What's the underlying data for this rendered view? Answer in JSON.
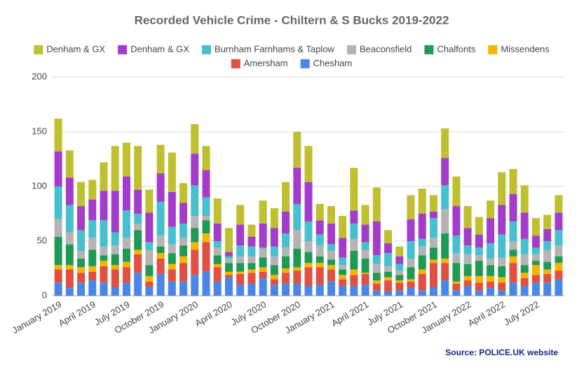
{
  "chart_data": {
    "type": "stacked_bar",
    "title": "Recorded Vehicle Crime - Chiltern & S Bucks 2019-2022",
    "source": "Source: POLICE.UK website",
    "categories": [
      "January 2019",
      null,
      null,
      "April 2019",
      null,
      null,
      "July 2019",
      null,
      null,
      "October 2019",
      null,
      null,
      "January 2020",
      null,
      null,
      "April 2020",
      null,
      null,
      "July 2020",
      null,
      null,
      "October 2020",
      null,
      null,
      "January 2021",
      null,
      null,
      "April 2021",
      null,
      null,
      "July 2021",
      null,
      null,
      "October 2021",
      null,
      null,
      "January 2022",
      null,
      null,
      "April 2022",
      null,
      null,
      "July 2022",
      null,
      null
    ],
    "ylim": [
      0,
      200
    ],
    "yticks": [
      0,
      50,
      100,
      150,
      200
    ],
    "grid": true,
    "series": [
      {
        "name": "Denham & GX",
        "color": "#bfbf30",
        "values": [
          30,
          25,
          22,
          18,
          26,
          41,
          31,
          40,
          21,
          26,
          36,
          18,
          27,
          22,
          23,
          22,
          18,
          11,
          21,
          18,
          27,
          33,
          33,
          15,
          16,
          20,
          39,
          18,
          31,
          12,
          9,
          22,
          23,
          15,
          27,
          27,
          20,
          16,
          16,
          30,
          23,
          25,
          16,
          13,
          16
        ]
      },
      {
        "name": "Denham & GX",
        "color": "#a43ccb",
        "values": [
          32,
          25,
          22,
          19,
          27,
          38,
          31,
          22,
          27,
          26,
          32,
          19,
          29,
          25,
          16,
          4,
          19,
          9,
          22,
          17,
          20,
          33,
          36,
          13,
          19,
          18,
          12,
          16,
          31,
          9,
          7,
          20,
          23,
          6,
          25,
          27,
          16,
          12,
          23,
          27,
          25,
          24,
          11,
          11,
          16
        ]
      },
      {
        "name": "Burnham Farnhams & Taplow",
        "color": "#46bfcf",
        "values": [
          30,
          25,
          19,
          16,
          24,
          12,
          25,
          9,
          7,
          31,
          16,
          13,
          28,
          17,
          6,
          2,
          10,
          9,
          1,
          9,
          13,
          24,
          18,
          10,
          6,
          7,
          14,
          7,
          8,
          12,
          6,
          16,
          7,
          18,
          22,
          16,
          8,
          7,
          14,
          21,
          18,
          14,
          6,
          8,
          14
        ]
      },
      {
        "name": "Beaconsfield",
        "color": "#b4b4b4",
        "values": [
          16,
          11,
          7,
          11,
          8,
          8,
          10,
          6,
          14,
          10,
          8,
          7,
          11,
          4,
          7,
          4,
          6,
          6,
          8,
          8,
          8,
          17,
          10,
          10,
          8,
          4,
          11,
          8,
          8,
          5,
          4,
          8,
          8,
          9,
          22,
          9,
          9,
          5,
          6,
          8,
          8,
          10,
          6,
          11,
          10
        ]
      },
      {
        "name": "Chalfonts",
        "color": "#1e9a54",
        "values": [
          26,
          19,
          8,
          15,
          5,
          10,
          12,
          18,
          10,
          6,
          10,
          10,
          13,
          12,
          8,
          8,
          8,
          6,
          9,
          9,
          11,
          17,
          10,
          6,
          5,
          5,
          17,
          13,
          7,
          5,
          5,
          11,
          13,
          11,
          23,
          17,
          11,
          14,
          10,
          10,
          6,
          7,
          4,
          7,
          6
        ]
      },
      {
        "name": "Missendens",
        "color": "#f5b400",
        "values": [
          4,
          4,
          5,
          5,
          5,
          4,
          5,
          4,
          5,
          5,
          5,
          6,
          7,
          8,
          3,
          3,
          2,
          3,
          4,
          4,
          4,
          3,
          4,
          4,
          4,
          4,
          5,
          1,
          3,
          3,
          2,
          2,
          4,
          3,
          4,
          2,
          4,
          6,
          5,
          5,
          6,
          5,
          9,
          4,
          7
        ]
      },
      {
        "name": "Amersham",
        "color": "#e04f3f",
        "values": [
          12,
          17,
          9,
          8,
          15,
          16,
          14,
          17,
          5,
          14,
          11,
          17,
          23,
          27,
          13,
          2,
          10,
          10,
          6,
          5,
          10,
          12,
          17,
          16,
          11,
          6,
          10,
          10,
          6,
          10,
          7,
          6,
          15,
          22,
          16,
          6,
          5,
          7,
          6,
          7,
          18,
          7,
          7,
          8,
          8
        ]
      },
      {
        "name": "Chesham",
        "color": "#4a86e8",
        "values": [
          12,
          7,
          12,
          14,
          12,
          8,
          12,
          21,
          8,
          20,
          13,
          13,
          19,
          22,
          13,
          17,
          10,
          11,
          16,
          10,
          11,
          11,
          9,
          10,
          13,
          9,
          9,
          10,
          5,
          4,
          5,
          7,
          5,
          8,
          14,
          5,
          9,
          5,
          7,
          5,
          12,
          9,
          12,
          12,
          15
        ]
      }
    ]
  }
}
